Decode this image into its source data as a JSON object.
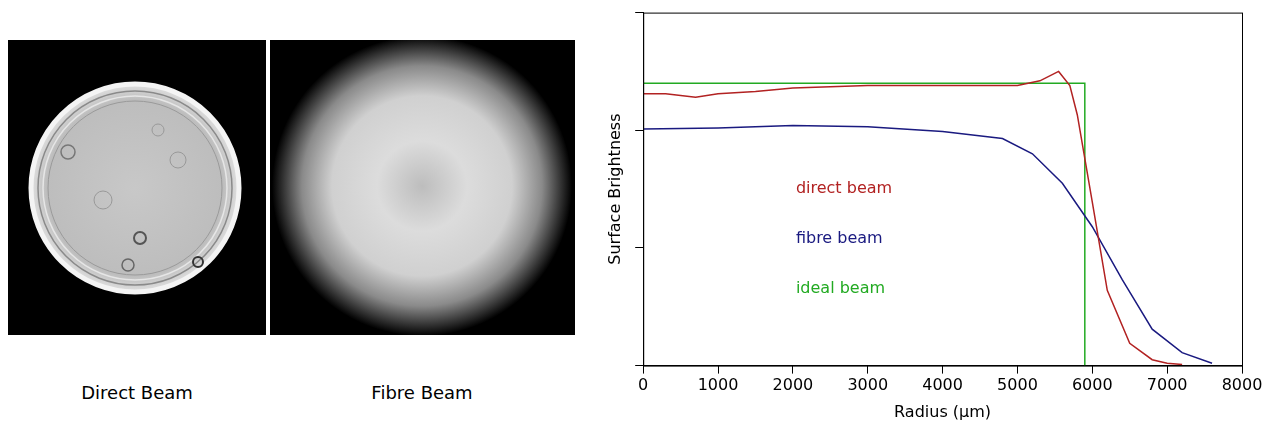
{
  "images": [
    {
      "caption": "Direct Beam"
    },
    {
      "caption": "Fibre Beam"
    }
  ],
  "chart_data": {
    "type": "line",
    "x_label": "Radius (μm)",
    "y_label": "Surface Brightness",
    "xlim": [
      0,
      8000
    ],
    "xticks": [
      0,
      1000,
      2000,
      3000,
      4000,
      5000,
      6000,
      7000,
      8000
    ],
    "ylim": [
      0,
      3
    ],
    "yticks": [
      0,
      1,
      2,
      3
    ],
    "tick_labels": "x",
    "grid": false,
    "legend": "center",
    "series": [
      {
        "name": "direct beam",
        "color": "#b22222",
        "line_style": "solid",
        "x": [
          0,
          300,
          700,
          1000,
          1500,
          2000,
          3000,
          4000,
          5000,
          5300,
          5550,
          5700,
          5800,
          6000,
          6200,
          6500,
          6800,
          7000,
          7200
        ],
        "values": [
          2.31,
          2.31,
          2.28,
          2.31,
          2.33,
          2.36,
          2.38,
          2.38,
          2.38,
          2.42,
          2.5,
          2.38,
          2.13,
          1.39,
          0.64,
          0.19,
          0.05,
          0.02,
          0.01
        ]
      },
      {
        "name": "fibre beam",
        "color": "#1a1a80",
        "line_style": "solid",
        "x": [
          0,
          1000,
          2000,
          3000,
          4000,
          4800,
          5200,
          5600,
          6000,
          6400,
          6800,
          7200,
          7600
        ],
        "values": [
          2.01,
          2.02,
          2.04,
          2.03,
          1.99,
          1.93,
          1.8,
          1.55,
          1.18,
          0.73,
          0.31,
          0.11,
          0.02
        ]
      },
      {
        "name": "ideal beam",
        "color": "#22aa22",
        "line_style": "solid",
        "x": [
          0,
          5900,
          5900
        ],
        "values": [
          2.4,
          2.4,
          0
        ]
      }
    ]
  }
}
